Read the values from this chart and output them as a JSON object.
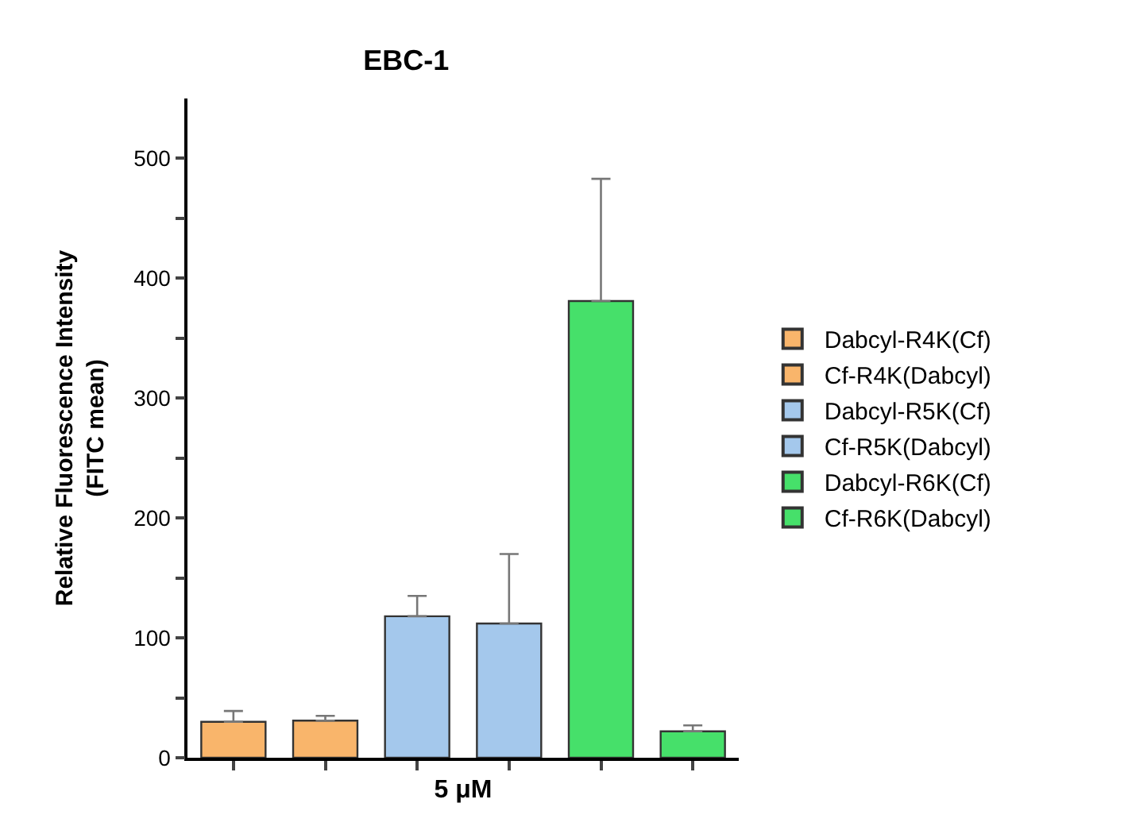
{
  "chart_data": {
    "type": "bar",
    "title": "EBC-1",
    "xlabel": "5 μM",
    "ylabel": "Relative Fluorescence Intensity\n(FITC mean)",
    "categories": [
      null,
      null,
      null,
      null,
      null,
      null
    ],
    "series": [
      {
        "name": "Dabcyl-R4K(Cf)",
        "color": "#f9b56b",
        "values": [
          30,
          null,
          null,
          null,
          null,
          null
        ],
        "errors": [
          [
            30,
            39
          ],
          null,
          null,
          null,
          null,
          null
        ]
      },
      {
        "name": "Cf-R4K(Dabcyl)",
        "color": "#f9b56b",
        "values": [
          null,
          31,
          null,
          null,
          null,
          null
        ],
        "errors": [
          null,
          [
            31,
            35
          ],
          null,
          null,
          null,
          null
        ]
      },
      {
        "name": "Dabcyl-R5K(Cf)",
        "color": "#a4c8ec",
        "values": [
          null,
          null,
          118,
          null,
          null,
          null
        ],
        "errors": [
          null,
          null,
          [
            118,
            135
          ],
          null,
          null,
          null
        ]
      },
      {
        "name": "Cf-R5K(Dabcyl)",
        "color": "#a4c8ec",
        "values": [
          null,
          null,
          null,
          112,
          null,
          null
        ],
        "errors": [
          null,
          null,
          null,
          [
            112,
            170
          ],
          null,
          null
        ]
      },
      {
        "name": "Dabcyl-R6K(Cf)",
        "color": "#46e06a",
        "values": [
          null,
          null,
          null,
          null,
          381,
          null
        ],
        "errors": [
          null,
          null,
          null,
          null,
          [
            381,
            483
          ],
          null
        ]
      },
      {
        "name": "Cf-R6K(Dabcyl)",
        "color": "#46e06a",
        "values": [
          null,
          null,
          null,
          null,
          null,
          22
        ],
        "errors": [
          null,
          null,
          null,
          null,
          null,
          [
            22,
            27
          ]
        ]
      }
    ],
    "ylim": [
      0,
      550
    ],
    "yticks": [
      0,
      {
        "value": 50,
        "label": null
      },
      100,
      {
        "value": 150,
        "label": null
      },
      200,
      {
        "value": 250,
        "label": null
      },
      300,
      {
        "value": 350,
        "label": null
      },
      400,
      {
        "value": 450,
        "label": null
      },
      500
    ],
    "legend": "right"
  }
}
